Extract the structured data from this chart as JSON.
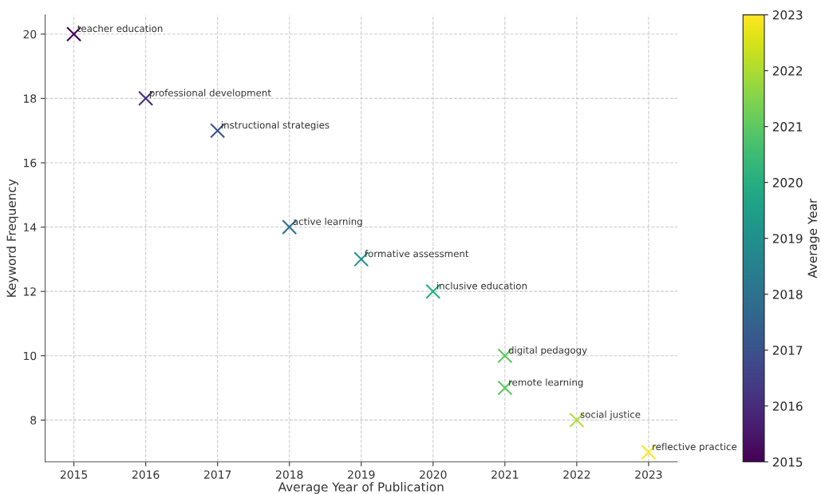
{
  "chart_data": {
    "type": "scatter",
    "xlabel": "Average Year of Publication",
    "ylabel": "Keyword Frequency",
    "clabel": "Average Year",
    "x": [
      2015,
      2016,
      2017,
      2018,
      2019,
      2020,
      2021,
      2021,
      2022,
      2023
    ],
    "values": [
      20,
      18,
      17,
      14,
      13,
      12,
      10,
      9,
      8,
      7
    ],
    "cvalues": [
      2015,
      2016,
      2017,
      2018,
      2019,
      2020,
      2021,
      2021,
      2022,
      2023
    ],
    "annotations": [
      {
        "text": "teacher education",
        "x": 2015,
        "y": 20
      },
      {
        "text": "professional development",
        "x": 2016,
        "y": 18
      },
      {
        "text": "instructional strategies",
        "x": 2017,
        "y": 17
      },
      {
        "text": "active learning",
        "x": 2018,
        "y": 14
      },
      {
        "text": "formative assessment",
        "x": 2019,
        "y": 13
      },
      {
        "text": "inclusive education",
        "x": 2020,
        "y": 12
      },
      {
        "text": "digital pedagogy",
        "x": 2021,
        "y": 10
      },
      {
        "text": "remote learning",
        "x": 2021,
        "y": 9
      },
      {
        "text": "social justice",
        "x": 2022,
        "y": 8
      },
      {
        "text": "reflective practice",
        "x": 2023,
        "y": 7
      }
    ],
    "xlim": [
      2014.6,
      2023.4
    ],
    "ylim": [
      6.7,
      20.6
    ],
    "xticks": [
      2015,
      2016,
      2017,
      2018,
      2019,
      2020,
      2021,
      2022,
      2023
    ],
    "yticks": [
      8,
      10,
      12,
      14,
      16,
      18,
      20
    ],
    "clim": [
      2015,
      2023
    ],
    "cticks": [
      2015,
      2016,
      2017,
      2018,
      2019,
      2020,
      2021,
      2022,
      2023
    ],
    "marker": "cross",
    "grid": true
  }
}
